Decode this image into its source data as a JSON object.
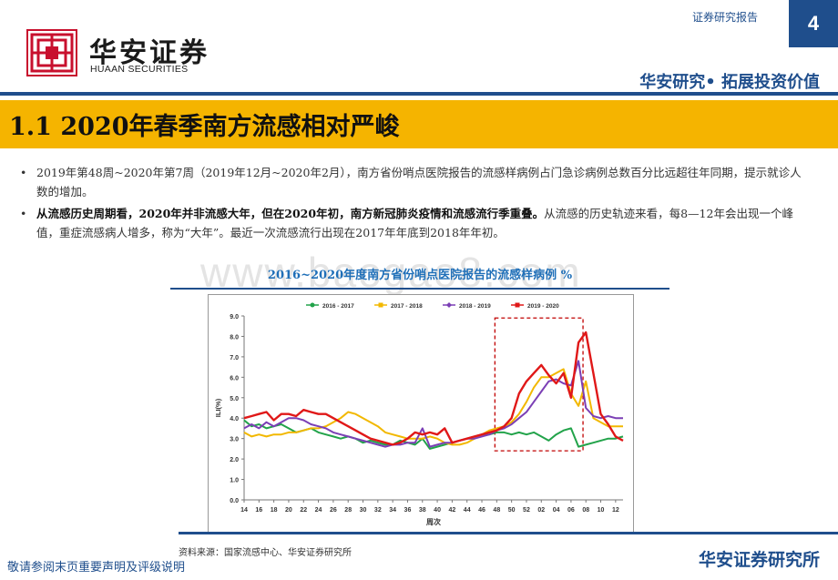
{
  "header": {
    "logo_cn": "华安证券",
    "logo_en": "HUAAN SECURITIES",
    "report_type": "证券研究报告",
    "page_number": "4",
    "slogan": "华安研究• 拓展投资价值"
  },
  "section": {
    "title": "1.1 2020年春季南方流感相对严峻"
  },
  "bullets": [
    {
      "marker": "•",
      "text": "2019年第48周~2020年第7周（2019年12月~2020年2月），南方省份哨点医院报告的流感样病例占门急诊病例总数百分比远超往年同期，提示就诊人数的增加。"
    },
    {
      "marker": "•",
      "strong": "从流感历史周期看，2020年并非流感大年，但在2020年初，南方新冠肺炎疫情和流感流行季重叠。",
      "text": "从流感的历史轨迹来看，每8—12年会出现一个峰值，重症流感病人增多，称为“大年”。最近一次流感流行出现在2017年年底到2018年年初。"
    }
  ],
  "watermark": "www.baogao8.com",
  "chart_title": "2016~2020年度南方省份哨点医院报告的流感样病例 %",
  "source": "资料来源：国家流感中心、华安证券研究所",
  "footer": {
    "disclaimer": "敬请参阅末页重要声明及评级说明",
    "brand": "华安证券研究所"
  },
  "colors": {
    "brand_blue": "#1f4e8c",
    "title_bar": "#f5b400",
    "series_2016_2017": "#22a34a",
    "series_2017_2018": "#f2b800",
    "series_2018_2019": "#7b3fb5",
    "series_2019_2020": "#e01818",
    "highlight_box": "#c00000"
  },
  "chart_data": {
    "type": "line",
    "title": "2016~2020年度南方省份哨点医院报告的流感样病例 %",
    "xlabel": "周次",
    "ylabel": "ILI(%)",
    "ylim": [
      0,
      9
    ],
    "yticks": [
      "0.0",
      "1.0",
      "2.0",
      "3.0",
      "4.0",
      "5.0",
      "6.0",
      "7.0",
      "8.0",
      "9.0"
    ],
    "xticks": [
      "14",
      "16",
      "18",
      "20",
      "22",
      "24",
      "26",
      "28",
      "30",
      "32",
      "34",
      "36",
      "38",
      "40",
      "42",
      "44",
      "46",
      "48",
      "50",
      "52",
      "02",
      "04",
      "06",
      "08",
      "10",
      "12"
    ],
    "legend_position": "top",
    "highlight_range": [
      "48",
      "07"
    ],
    "series": [
      {
        "name": "2016 - 2017",
        "values": [
          3.9,
          3.6,
          3.7,
          3.5,
          3.6,
          3.7,
          3.5,
          3.3,
          3.4,
          3.5,
          3.3,
          3.2,
          3.1,
          3.0,
          3.1,
          3.0,
          2.8,
          2.9,
          2.8,
          2.7,
          2.7,
          2.9,
          2.8,
          2.7,
          3.0,
          2.5,
          2.6,
          2.7,
          2.8,
          2.9,
          3.0,
          3.1,
          3.2,
          3.2,
          3.3,
          3.3,
          3.2,
          3.3,
          3.2,
          3.3,
          3.1,
          2.9,
          3.2,
          3.4,
          3.5,
          2.6,
          2.7,
          2.8,
          2.9,
          3.0,
          3.0,
          3.1
        ]
      },
      {
        "name": "2017 - 2018",
        "values": [
          3.3,
          3.1,
          3.2,
          3.1,
          3.2,
          3.2,
          3.3,
          3.3,
          3.4,
          3.5,
          3.5,
          3.6,
          3.8,
          4.0,
          4.3,
          4.2,
          4.0,
          3.8,
          3.6,
          3.3,
          3.2,
          3.1,
          3.0,
          3.0,
          3.0,
          3.1,
          3.0,
          2.8,
          2.7,
          2.7,
          2.8,
          3.0,
          3.2,
          3.4,
          3.5,
          3.6,
          3.8,
          4.2,
          4.8,
          5.5,
          6.0,
          6.0,
          6.2,
          6.4,
          5.2,
          4.6,
          5.8,
          4.0,
          3.8,
          3.6,
          3.6,
          3.6
        ]
      },
      {
        "name": "2018 - 2019",
        "values": [
          3.5,
          3.7,
          3.5,
          3.8,
          3.6,
          3.8,
          4.0,
          4.0,
          3.9,
          3.7,
          3.6,
          3.5,
          3.3,
          3.2,
          3.1,
          3.0,
          2.9,
          2.8,
          2.7,
          2.6,
          2.7,
          2.7,
          2.8,
          2.8,
          3.5,
          2.6,
          2.7,
          2.8,
          2.8,
          2.9,
          3.0,
          3.0,
          3.1,
          3.2,
          3.4,
          3.5,
          3.7,
          4.0,
          4.3,
          4.8,
          5.3,
          5.8,
          5.9,
          5.7,
          5.6,
          6.8,
          4.5,
          4.1,
          4.0,
          4.1,
          4.0,
          4.0
        ]
      },
      {
        "name": "2019 - 2020",
        "values": [
          4.0,
          4.1,
          4.2,
          4.3,
          3.9,
          4.2,
          4.2,
          4.1,
          4.4,
          4.3,
          4.2,
          4.2,
          4.0,
          3.8,
          3.6,
          3.4,
          3.2,
          3.0,
          2.9,
          2.8,
          2.7,
          2.8,
          3.0,
          3.3,
          3.2,
          3.3,
          3.2,
          3.5,
          2.8,
          2.9,
          3.0,
          3.1,
          3.2,
          3.3,
          3.4,
          3.6,
          4.0,
          5.2,
          5.8,
          6.2,
          6.6,
          6.1,
          5.7,
          6.2,
          5.0,
          7.7,
          8.2,
          6.2,
          4.2,
          3.7,
          3.1,
          2.9
        ]
      }
    ]
  }
}
